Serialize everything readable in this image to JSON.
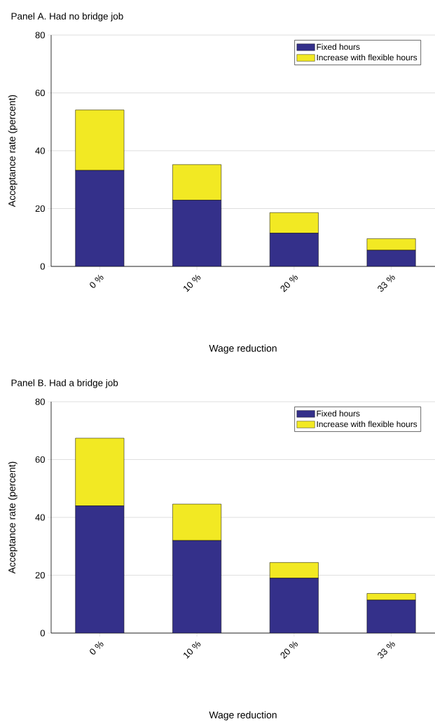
{
  "chart_data": [
    {
      "type": "bar",
      "stacked": true,
      "title": "Panel A. Had no bridge job",
      "xlabel": "Wage reduction",
      "ylabel": "Acceptance rate (percent)",
      "categories": [
        "0 %",
        "10 %",
        "20 %",
        "33 %"
      ],
      "series": [
        {
          "name": "Fixed hours",
          "color": "#34308a",
          "values": [
            33.2,
            22.9,
            11.5,
            5.6
          ]
        },
        {
          "name": "Increase with flexible hours",
          "color": "#f2e923",
          "values": [
            20.9,
            12.3,
            7.1,
            4.0
          ]
        }
      ],
      "ylim": [
        0,
        80
      ],
      "yticks": [
        0,
        20,
        40,
        60,
        80
      ],
      "grid": "y",
      "legend": "top right"
    },
    {
      "type": "bar",
      "stacked": true,
      "title": "Panel B. Had a bridge job",
      "xlabel": "Wage reduction",
      "ylabel": "Acceptance rate (percent)",
      "categories": [
        "0 %",
        "10 %",
        "20 %",
        "33 %"
      ],
      "series": [
        {
          "name": "Fixed hours",
          "color": "#34308a",
          "values": [
            44.0,
            32.0,
            19.0,
            11.4
          ]
        },
        {
          "name": "Increase with flexible hours",
          "color": "#f2e923",
          "values": [
            23.4,
            12.6,
            5.4,
            2.3
          ]
        }
      ],
      "ylim": [
        0,
        80
      ],
      "yticks": [
        0,
        20,
        40,
        60,
        80
      ],
      "grid": "y",
      "legend": "top right"
    }
  ]
}
